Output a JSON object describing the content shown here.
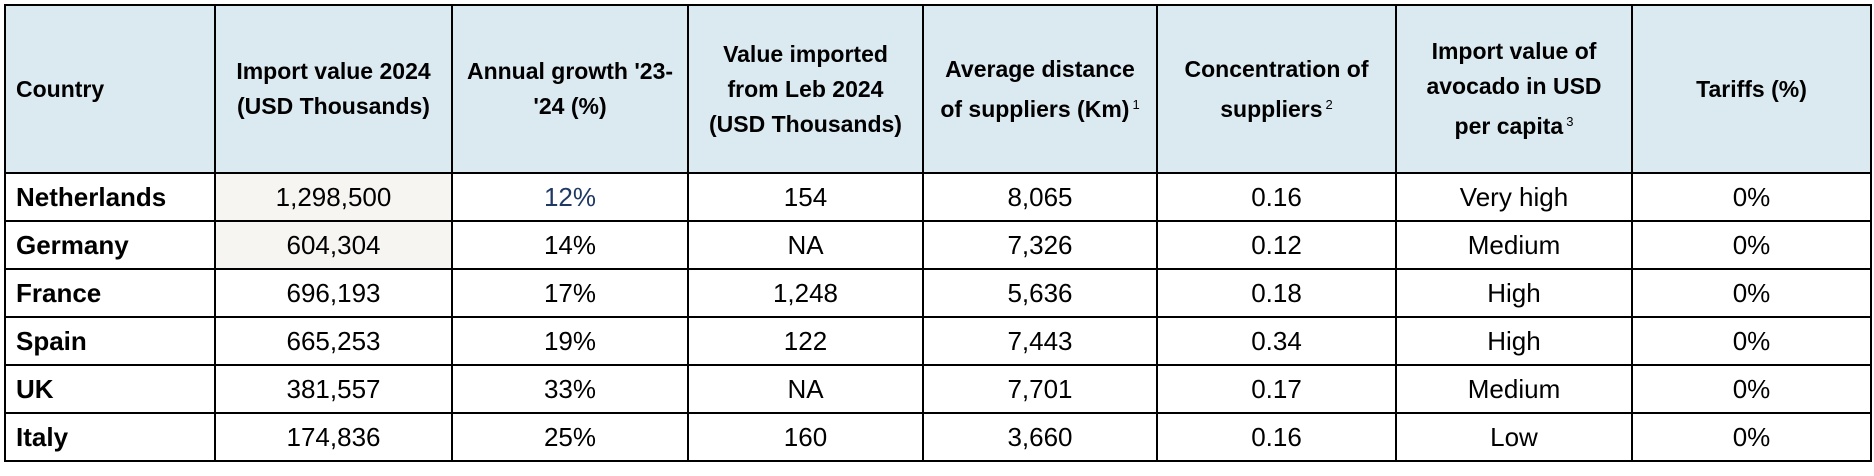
{
  "table": {
    "headers": [
      {
        "text": "Country"
      },
      {
        "text": "Import value 2024 (USD Thousands)"
      },
      {
        "text": "Annual growth '23-'24 (%)"
      },
      {
        "text": "Value imported from Leb 2024 (USD Thousands)"
      },
      {
        "text": "Average distance of suppliers (Km)",
        "note": "1"
      },
      {
        "text": "Concentration of suppliers",
        "note": "2"
      },
      {
        "text": "Import value of avocado in USD per capita",
        "note": "3"
      },
      {
        "text": "Tariffs (%)"
      }
    ],
    "rows": [
      [
        "Netherlands",
        "1,298,500",
        "12%",
        "154",
        "8,065",
        "0.16",
        "Very high",
        "0%"
      ],
      [
        "Germany",
        "604,304",
        "14%",
        "NA",
        "7,326",
        "0.12",
        "Medium",
        "0%"
      ],
      [
        "France",
        "696,193",
        "17%",
        "1,248",
        "5,636",
        "0.18",
        "High",
        "0%"
      ],
      [
        "Spain",
        "665,253",
        "19%",
        "122",
        "7,443",
        "0.34",
        "High",
        "0%"
      ],
      [
        "UK",
        "381,557",
        "33%",
        "NA",
        "7,701",
        "0.17",
        "Medium",
        "0%"
      ],
      [
        "Italy",
        "174,836",
        "25%",
        "160",
        "3,660",
        "0.16",
        "Low",
        "0%"
      ]
    ]
  }
}
